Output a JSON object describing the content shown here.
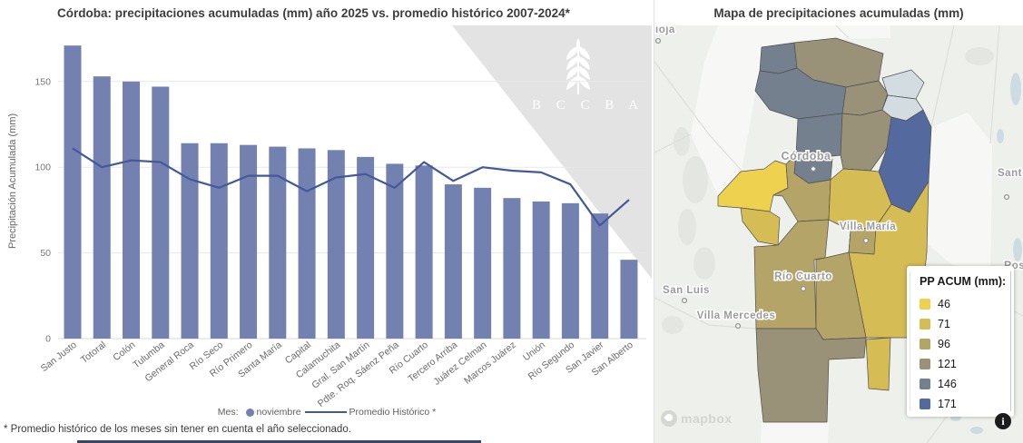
{
  "chart": {
    "title": "Córdoba: precipitaciones acumuladas (mm) año 2025 vs. promedio histórico 2007-2024*",
    "legend_prefix": "Mes:",
    "footnote": "* Promedio histórico de los meses sin tener en cuenta el año seleccionado."
  },
  "watermark": {
    "letters": "B C C B A"
  },
  "chart_data": {
    "type": "bar",
    "title": "Córdoba: precipitaciones acumuladas (mm) año 2025 vs. promedio histórico 2007-2024*",
    "xlabel": "",
    "ylabel": "Precipitación Acumulada (mm)",
    "yticks": [
      0,
      50,
      100,
      150
    ],
    "ylim": [
      0,
      175
    ],
    "grid": true,
    "legend_position": "bottom",
    "categories": [
      "San Justo",
      "Totoral",
      "Colón",
      "Tulumba",
      "General Roca",
      "Río Seco",
      "Río Primero",
      "Santa María",
      "Capital",
      "Calamuchita",
      "Gral. San Martín",
      "Pdte. Roq. Sáenz Peña",
      "Río Cuarto",
      "Tercero Arriba",
      "Juárez Celman",
      "Marcos Juárez",
      "Unión",
      "Río Segundo",
      "San Javier",
      "San Alberto"
    ],
    "series": [
      {
        "name": "noviembre",
        "type": "bar",
        "color": "#7381b0",
        "values": [
          171,
          153,
          150,
          147,
          114,
          114,
          113,
          112,
          111,
          110,
          106,
          102,
          101,
          90,
          88,
          82,
          80,
          79,
          73,
          46
        ]
      },
      {
        "name": "Promedio Histórico *",
        "type": "line",
        "color": "#45589a",
        "values": [
          111,
          100,
          104,
          103,
          93,
          88,
          95,
          95,
          86,
          94,
          96,
          88,
          103,
          92,
          100,
          98,
          97,
          90,
          66,
          81
        ]
      }
    ]
  },
  "map": {
    "title": "Mapa de precipitaciones acumuladas (mm)",
    "legend": {
      "title": "PP ACUM (mm):",
      "items": [
        {
          "label": "46",
          "color": "#eed24f"
        },
        {
          "label": "71",
          "color": "#d6bc55"
        },
        {
          "label": "96",
          "color": "#b5a467"
        },
        {
          "label": "121",
          "color": "#9a9179"
        },
        {
          "label": "146",
          "color": "#75808f"
        },
        {
          "label": "171",
          "color": "#54699e"
        }
      ]
    },
    "lagoon_color": "#d3dde1",
    "cities": [
      {
        "name": "Córdoba"
      },
      {
        "name": "Villa María"
      },
      {
        "name": "Río Cuarto"
      },
      {
        "name": "San Luis"
      },
      {
        "name": "Villa Mercedes"
      },
      {
        "name": "Sant"
      },
      {
        "name": "Ros"
      },
      {
        "name": "ioja"
      }
    ],
    "attribution": "mapbox"
  }
}
